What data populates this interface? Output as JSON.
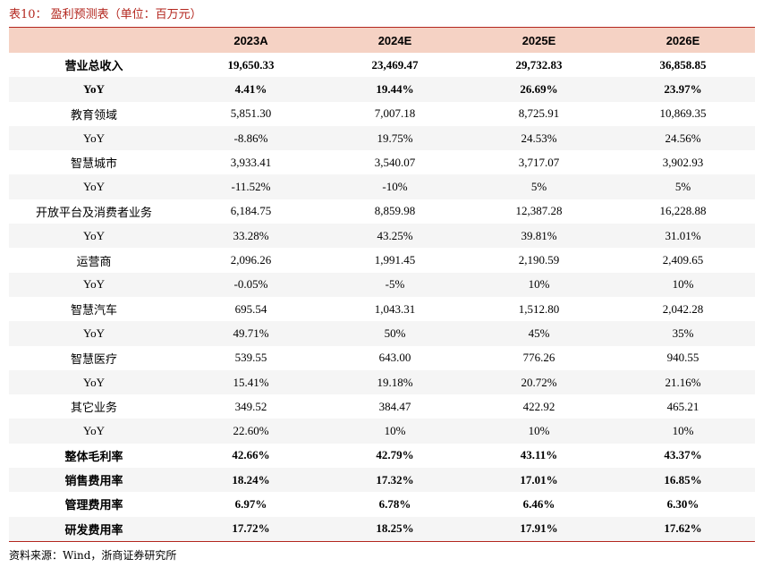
{
  "caption": "表10：  盈利预测表（单位：百万元）",
  "columns": [
    "",
    "2023A",
    "2024E",
    "2025E",
    "2026E"
  ],
  "rows": [
    {
      "label": "营业总收入",
      "bold": true,
      "values": [
        "19,650.33",
        "23,469.47",
        "29,732.83",
        "36,858.85"
      ]
    },
    {
      "label": "YoY",
      "bold": true,
      "values": [
        "4.41%",
        "19.44%",
        "26.69%",
        "23.97%"
      ]
    },
    {
      "label": "教育领域",
      "bold": false,
      "values": [
        "5,851.30",
        "7,007.18",
        "8,725.91",
        "10,869.35"
      ]
    },
    {
      "label": "YoY",
      "bold": false,
      "values": [
        "-8.86%",
        "19.75%",
        "24.53%",
        "24.56%"
      ]
    },
    {
      "label": "智慧城市",
      "bold": false,
      "values": [
        "3,933.41",
        "3,540.07",
        "3,717.07",
        "3,902.93"
      ]
    },
    {
      "label": "YoY",
      "bold": false,
      "values": [
        "-11.52%",
        "-10%",
        "5%",
        "5%"
      ]
    },
    {
      "label": "开放平台及消费者业务",
      "bold": false,
      "values": [
        "6,184.75",
        "8,859.98",
        "12,387.28",
        "16,228.88"
      ]
    },
    {
      "label": "YoY",
      "bold": false,
      "values": [
        "33.28%",
        "43.25%",
        "39.81%",
        "31.01%"
      ]
    },
    {
      "label": "运营商",
      "bold": false,
      "values": [
        "2,096.26",
        "1,991.45",
        "2,190.59",
        "2,409.65"
      ]
    },
    {
      "label": "YoY",
      "bold": false,
      "values": [
        "-0.05%",
        "-5%",
        "10%",
        "10%"
      ]
    },
    {
      "label": "智慧汽车",
      "bold": false,
      "values": [
        "695.54",
        "1,043.31",
        "1,512.80",
        "2,042.28"
      ]
    },
    {
      "label": "YoY",
      "bold": false,
      "values": [
        "49.71%",
        "50%",
        "45%",
        "35%"
      ]
    },
    {
      "label": "智慧医疗",
      "bold": false,
      "values": [
        "539.55",
        "643.00",
        "776.26",
        "940.55"
      ]
    },
    {
      "label": "YoY",
      "bold": false,
      "values": [
        "15.41%",
        "19.18%",
        "20.72%",
        "21.16%"
      ]
    },
    {
      "label": "其它业务",
      "bold": false,
      "values": [
        "349.52",
        "384.47",
        "422.92",
        "465.21"
      ]
    },
    {
      "label": "YoY",
      "bold": false,
      "values": [
        "22.60%",
        "10%",
        "10%",
        "10%"
      ]
    },
    {
      "label": "整体毛利率",
      "bold": true,
      "values": [
        "42.66%",
        "42.79%",
        "43.11%",
        "43.37%"
      ]
    },
    {
      "label": "销售费用率",
      "bold": true,
      "values": [
        "18.24%",
        "17.32%",
        "17.01%",
        "16.85%"
      ]
    },
    {
      "label": "管理费用率",
      "bold": true,
      "values": [
        "6.97%",
        "6.78%",
        "6.46%",
        "6.30%"
      ]
    },
    {
      "label": "研发费用率",
      "bold": true,
      "values": [
        "17.72%",
        "18.25%",
        "17.91%",
        "17.62%"
      ]
    }
  ],
  "source": "资料来源：Wind，浙商证券研究所"
}
